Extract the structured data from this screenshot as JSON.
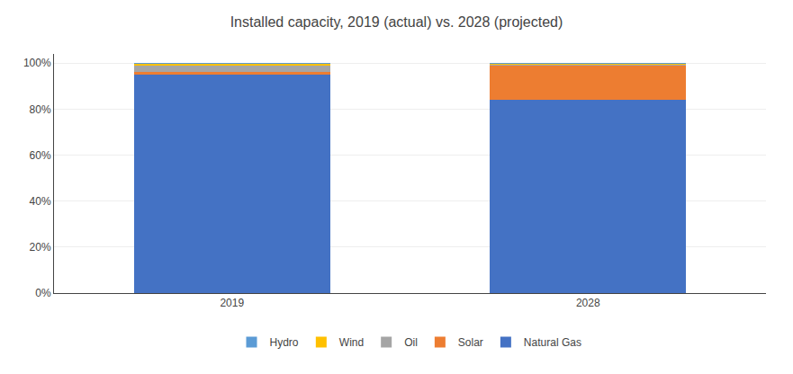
{
  "chart_data": {
    "type": "bar",
    "title": "Installed capacity, 2019 (actual) vs. 2028 (projected)",
    "categories": [
      "2019",
      "2028"
    ],
    "series": [
      {
        "name": "Natural Gas",
        "color": "#4472C4",
        "values": [
          0.95,
          0.84
        ]
      },
      {
        "name": "Solar",
        "color": "#ED7D31",
        "values": [
          0.013,
          0.148
        ]
      },
      {
        "name": "Oil",
        "color": "#A5A5A5",
        "values": [
          0.03,
          0.008
        ]
      },
      {
        "name": "Wind",
        "color": "#FFC000",
        "values": [
          0.004,
          0.002
        ]
      },
      {
        "name": "Hydro",
        "color": "#5B9BD5",
        "values": [
          0.003,
          0.002
        ]
      }
    ],
    "stacked": true,
    "ylim": [
      0,
      1.04
    ],
    "yticks": [
      {
        "value": 0,
        "label": "0%"
      },
      {
        "value": 0.2,
        "label": "20%"
      },
      {
        "value": 0.4,
        "label": "40%"
      },
      {
        "value": 0.6,
        "label": "60%"
      },
      {
        "value": 0.8,
        "label": "80%"
      },
      {
        "value": 1.0,
        "label": "100%"
      }
    ],
    "grid": true,
    "legend": "bottom"
  }
}
